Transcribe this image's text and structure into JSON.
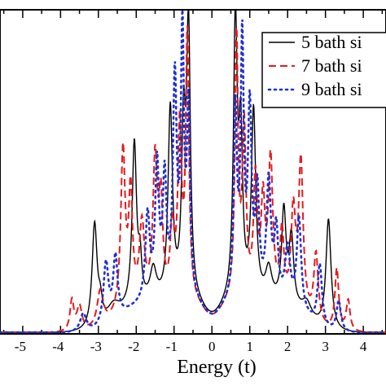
{
  "chart_data": {
    "type": "line",
    "title": "",
    "xlabel": "Energy (t)",
    "ylabel": "",
    "xlim": [
      -5.6,
      4.6
    ],
    "ylim": [
      0,
      1.0
    ],
    "x_ticks": [
      -5,
      -4,
      -3,
      -2,
      -1,
      0,
      1,
      2,
      3,
      4
    ],
    "x_tick_labels": [
      "-5",
      "-4",
      "-3",
      "-2",
      "-1",
      "0",
      "1",
      "2",
      "3",
      "4"
    ],
    "legend_position": "top-right",
    "grid": false,
    "series": [
      {
        "name": "5 bath si",
        "color": "#000000",
        "style": "solid",
        "peaks": [
          {
            "x": -3.1,
            "h": 0.34,
            "w": 0.08
          },
          {
            "x": -2.95,
            "h": 0.06,
            "w": 0.06
          },
          {
            "x": -2.6,
            "h": 0.05,
            "w": 0.2
          },
          {
            "x": -2.05,
            "h": 0.53,
            "w": 0.07
          },
          {
            "x": -1.9,
            "h": 0.12,
            "w": 0.05
          },
          {
            "x": -1.55,
            "h": 0.1,
            "w": 0.1
          },
          {
            "x": -1.1,
            "h": 0.62,
            "w": 0.07
          },
          {
            "x": -0.75,
            "h": 0.52,
            "w": 0.06
          },
          {
            "x": -0.62,
            "h": 0.87,
            "w": 0.06
          },
          {
            "x": 0.62,
            "h": 0.9,
            "w": 0.06
          },
          {
            "x": 0.76,
            "h": 0.5,
            "w": 0.06
          },
          {
            "x": 1.1,
            "h": 0.61,
            "w": 0.07
          },
          {
            "x": 1.5,
            "h": 0.1,
            "w": 0.1
          },
          {
            "x": 1.9,
            "h": 0.3,
            "w": 0.07
          },
          {
            "x": 2.1,
            "h": 0.22,
            "w": 0.07
          },
          {
            "x": 2.5,
            "h": 0.05,
            "w": 0.15
          },
          {
            "x": 3.08,
            "h": 0.36,
            "w": 0.08
          }
        ]
      },
      {
        "name": "7 bath si",
        "color": "#e41a1c",
        "style": "dashed",
        "peaks": [
          {
            "x": -3.7,
            "h": 0.1,
            "w": 0.06
          },
          {
            "x": -3.5,
            "h": 0.08,
            "w": 0.08
          },
          {
            "x": -2.95,
            "h": 0.12,
            "w": 0.1
          },
          {
            "x": -2.35,
            "h": 0.52,
            "w": 0.07
          },
          {
            "x": -2.15,
            "h": 0.36,
            "w": 0.06
          },
          {
            "x": -1.85,
            "h": 0.25,
            "w": 0.08
          },
          {
            "x": -1.5,
            "h": 0.45,
            "w": 0.07
          },
          {
            "x": -1.35,
            "h": 0.3,
            "w": 0.06
          },
          {
            "x": -1.05,
            "h": 0.22,
            "w": 0.06
          },
          {
            "x": -0.85,
            "h": 0.55,
            "w": 0.06
          },
          {
            "x": -0.65,
            "h": 0.85,
            "w": 0.05
          },
          {
            "x": 0.65,
            "h": 0.85,
            "w": 0.05
          },
          {
            "x": 0.85,
            "h": 0.55,
            "w": 0.06
          },
          {
            "x": 1.15,
            "h": 0.38,
            "w": 0.06
          },
          {
            "x": 1.35,
            "h": 0.3,
            "w": 0.06
          },
          {
            "x": 1.55,
            "h": 0.45,
            "w": 0.07
          },
          {
            "x": 1.85,
            "h": 0.22,
            "w": 0.06
          },
          {
            "x": 2.15,
            "h": 0.3,
            "w": 0.07
          },
          {
            "x": 2.35,
            "h": 0.48,
            "w": 0.07
          },
          {
            "x": 2.75,
            "h": 0.22,
            "w": 0.07
          },
          {
            "x": 3.3,
            "h": 0.2,
            "w": 0.06
          },
          {
            "x": 3.6,
            "h": 0.1,
            "w": 0.06
          }
        ]
      },
      {
        "name": "9 bath si",
        "color": "#1f2fd1",
        "style": "dotted",
        "peaks": [
          {
            "x": -3.4,
            "h": 0.06,
            "w": 0.1
          },
          {
            "x": -2.8,
            "h": 0.2,
            "w": 0.08
          },
          {
            "x": -2.55,
            "h": 0.2,
            "w": 0.07
          },
          {
            "x": -1.7,
            "h": 0.28,
            "w": 0.07
          },
          {
            "x": -1.45,
            "h": 0.43,
            "w": 0.06
          },
          {
            "x": -1.25,
            "h": 0.38,
            "w": 0.06
          },
          {
            "x": -0.98,
            "h": 0.7,
            "w": 0.06
          },
          {
            "x": -0.78,
            "h": 0.84,
            "w": 0.05
          },
          {
            "x": -0.62,
            "h": 0.6,
            "w": 0.05
          },
          {
            "x": 0.62,
            "h": 0.6,
            "w": 0.05
          },
          {
            "x": 0.8,
            "h": 0.82,
            "w": 0.05
          },
          {
            "x": 1.0,
            "h": 0.6,
            "w": 0.06
          },
          {
            "x": 1.2,
            "h": 0.33,
            "w": 0.06
          },
          {
            "x": 1.5,
            "h": 0.38,
            "w": 0.07
          },
          {
            "x": 1.7,
            "h": 0.22,
            "w": 0.06
          },
          {
            "x": 2.0,
            "h": 0.18,
            "w": 0.08
          },
          {
            "x": 2.3,
            "h": 0.3,
            "w": 0.07
          },
          {
            "x": 2.85,
            "h": 0.2,
            "w": 0.07
          },
          {
            "x": 3.35,
            "h": 0.1,
            "w": 0.07
          }
        ]
      }
    ]
  }
}
